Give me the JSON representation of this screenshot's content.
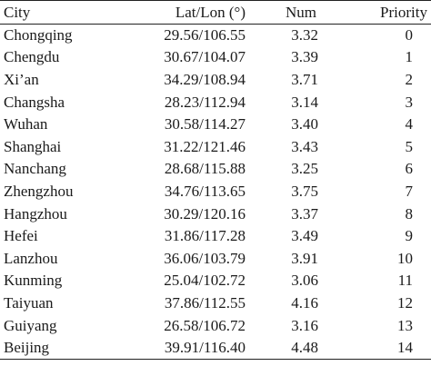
{
  "table": {
    "headers": {
      "city": "City",
      "latlon": "Lat/Lon (°)",
      "num": "Num",
      "priority": "Priority"
    },
    "rows": [
      {
        "city": "Chongqing",
        "latlon": "29.56/106.55",
        "num": "3.32",
        "priority": "0"
      },
      {
        "city": "Chengdu",
        "latlon": "30.67/104.07",
        "num": "3.39",
        "priority": "1"
      },
      {
        "city": "Xi’an",
        "latlon": "34.29/108.94",
        "num": "3.71",
        "priority": "2"
      },
      {
        "city": "Changsha",
        "latlon": "28.23/112.94",
        "num": "3.14",
        "priority": "3"
      },
      {
        "city": "Wuhan",
        "latlon": "30.58/114.27",
        "num": "3.40",
        "priority": "4"
      },
      {
        "city": "Shanghai",
        "latlon": "31.22/121.46",
        "num": "3.43",
        "priority": "5"
      },
      {
        "city": "Nanchang",
        "latlon": "28.68/115.88",
        "num": "3.25",
        "priority": "6"
      },
      {
        "city": "Zhengzhou",
        "latlon": "34.76/113.65",
        "num": "3.75",
        "priority": "7"
      },
      {
        "city": "Hangzhou",
        "latlon": "30.29/120.16",
        "num": "3.37",
        "priority": "8"
      },
      {
        "city": "Hefei",
        "latlon": "31.86/117.28",
        "num": "3.49",
        "priority": "9"
      },
      {
        "city": "Lanzhou",
        "latlon": "36.06/103.79",
        "num": "3.91",
        "priority": "10"
      },
      {
        "city": "Kunming",
        "latlon": "25.04/102.72",
        "num": "3.06",
        "priority": "11"
      },
      {
        "city": "Taiyuan",
        "latlon": "37.86/112.55",
        "num": "4.16",
        "priority": "12"
      },
      {
        "city": "Guiyang",
        "latlon": "26.58/106.72",
        "num": "3.16",
        "priority": "13"
      },
      {
        "city": "Beijing",
        "latlon": "39.91/116.40",
        "num": "4.48",
        "priority": "14"
      }
    ]
  }
}
